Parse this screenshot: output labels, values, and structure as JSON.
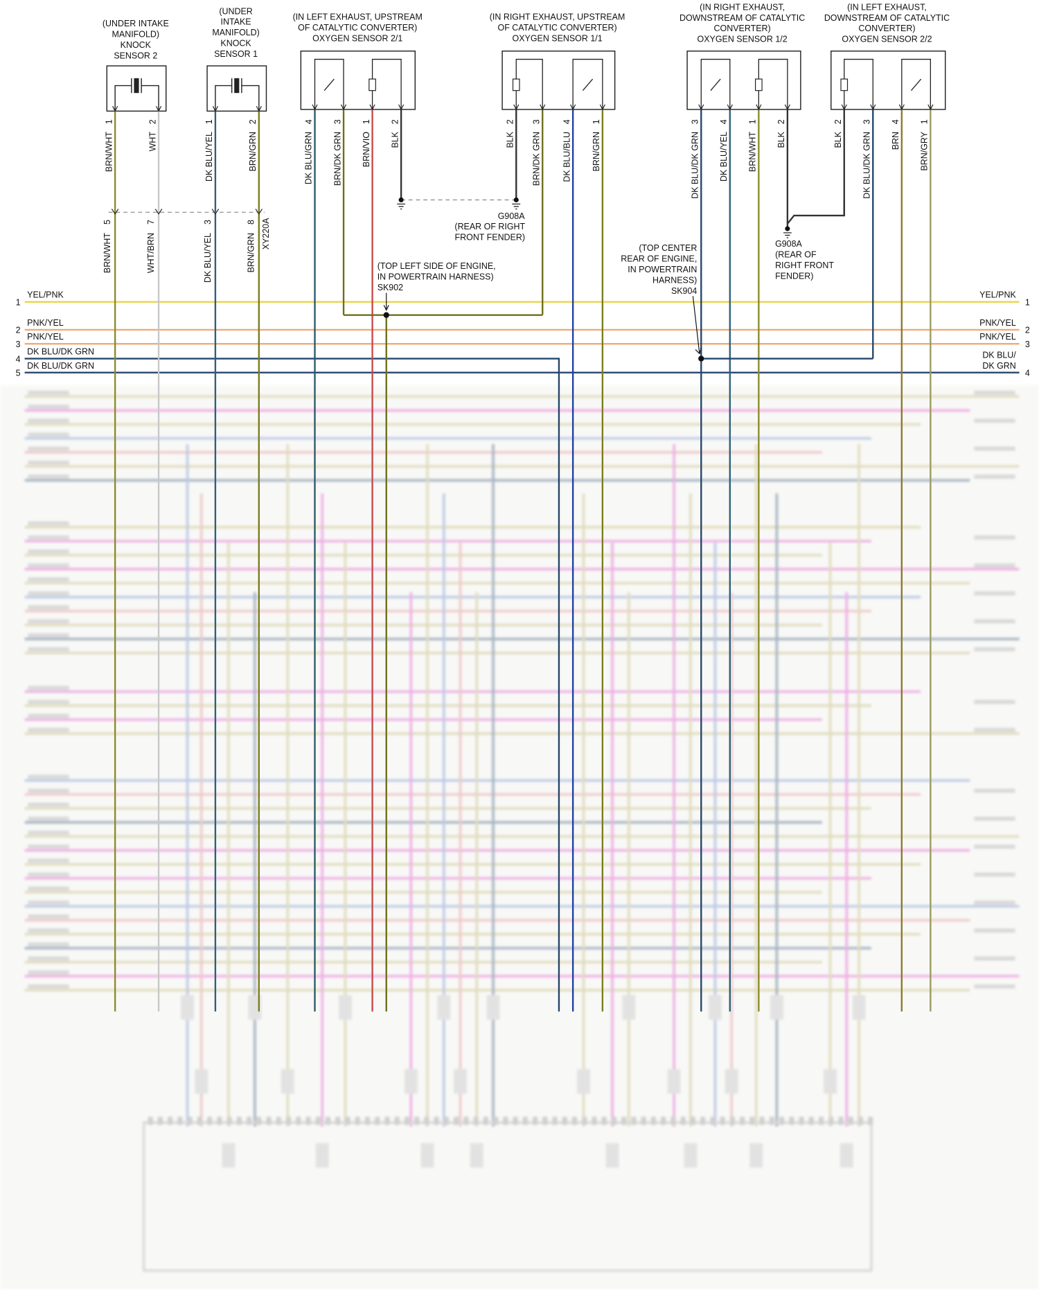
{
  "components": [
    {
      "label": [
        "(UNDER INTAKE",
        "MANIFOLD)",
        "KNOCK",
        "SENSOR 2"
      ],
      "pins": [
        {
          "pin": "1",
          "wire": "BRN/WHT"
        },
        {
          "pin": "2",
          "wire": "WHT"
        }
      ]
    },
    {
      "label": [
        "(UNDER",
        "INTAKE",
        "MANIFOLD)",
        "KNOCK",
        "SENSOR 1"
      ],
      "pins": [
        {
          "pin": "1",
          "wire": "DK BLU/YEL"
        },
        {
          "pin": "2",
          "wire": "BRN/GRN"
        }
      ]
    },
    {
      "label": [
        "(IN LEFT EXHAUST, UPSTREAM",
        "OF CATALYTIC CONVERTER)",
        "OXYGEN SENSOR 2/1"
      ],
      "pins": [
        {
          "pin": "4",
          "wire": "DK BLU/GRN"
        },
        {
          "pin": "3",
          "wire": "BRN/DK GRN"
        },
        {
          "pin": "1",
          "wire": "BRN/VIO"
        },
        {
          "pin": "2",
          "wire": "BLK"
        }
      ]
    },
    {
      "label": [
        "(IN RIGHT EXHAUST, UPSTREAM",
        "OF CATALYTIC CONVERTER)",
        "OXYGEN SENSOR 1/1"
      ],
      "pins": [
        {
          "pin": "2",
          "wire": "BLK"
        },
        {
          "pin": "3",
          "wire": "BRN/DK GRN"
        },
        {
          "pin": "4",
          "wire": "DK BLU/BLU"
        },
        {
          "pin": "1",
          "wire": "BRN/GRN"
        }
      ]
    },
    {
      "label": [
        "(IN RIGHT EXHAUST,",
        "DOWNSTREAM OF CATALYTIC",
        "CONVERTER)",
        "OXYGEN SENSOR 1/2"
      ],
      "pins": [
        {
          "pin": "3",
          "wire": "DK BLU/DK GRN"
        },
        {
          "pin": "4",
          "wire": "DK BLU/YEL"
        },
        {
          "pin": "1",
          "wire": "BRN/WHT"
        },
        {
          "pin": "2",
          "wire": "BLK"
        }
      ]
    },
    {
      "label": [
        "(IN LEFT EXHAUST,",
        "DOWNSTREAM OF CATALYTIC",
        "CONVERTER)",
        "OXYGEN SENSOR 2/2"
      ],
      "pins": [
        {
          "pin": "2",
          "wire": "BLK"
        },
        {
          "pin": "3",
          "wire": "DK BLU/DK GRN"
        },
        {
          "pin": "4",
          "wire": "BRN"
        },
        {
          "pin": "1",
          "wire": "BRN/GRY"
        }
      ]
    }
  ],
  "connector": {
    "name": "XY220A",
    "pins": [
      {
        "pin": "5",
        "wire": "BRN/WHT"
      },
      {
        "pin": "7",
        "wire": "WHT/BRN"
      },
      {
        "pin": "3",
        "wire": "DK BLU/YEL"
      },
      {
        "pin": "8",
        "wire": "BRN/GRN"
      }
    ]
  },
  "grounds": [
    {
      "label": [
        "G908A",
        "(REAR OF RIGHT",
        "FRONT FENDER)"
      ]
    },
    {
      "label": [
        "G908A",
        "(REAR OF",
        "RIGHT FRONT",
        "FENDER)"
      ]
    }
  ],
  "splices": [
    {
      "label": [
        "(TOP LEFT SIDE OF ENGINE,",
        "IN POWERTRAIN HARNESS)",
        "SK902"
      ]
    },
    {
      "label": [
        "(TOP CENTER",
        "REAR OF ENGINE,",
        "IN POWERTRAIN",
        "HARNESS)",
        "SK904"
      ]
    }
  ],
  "buses": [
    {
      "left_num": "1",
      "left_label": "YEL/PNK",
      "right_label": [
        "YEL/PNK"
      ],
      "right_num": "1"
    },
    {
      "left_num": "2",
      "left_label": "PNK/YEL",
      "right_label": [
        "PNK/YEL"
      ],
      "right_num": "2"
    },
    {
      "left_num": "3",
      "left_label": "PNK/YEL",
      "right_label": [
        "PNK/YEL"
      ],
      "right_num": "3"
    },
    {
      "left_num": "4",
      "left_label": "DK BLU/DK GRN"
    },
    {
      "left_num": "5",
      "left_label": "DK BLU/DK GRN",
      "right_label": [
        "DK BLU/",
        "DK GRN"
      ],
      "right_num": "4"
    }
  ]
}
